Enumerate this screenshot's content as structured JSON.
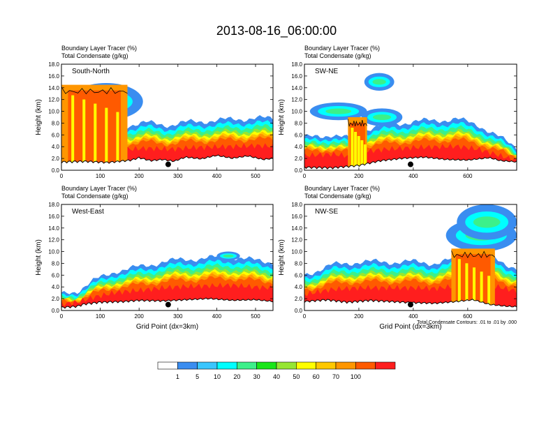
{
  "title": "2013-08-16_06:00:00",
  "colors": {
    "palette": [
      "#ffffff",
      "#3a8df0",
      "#39c6ff",
      "#00ffff",
      "#3cf08a",
      "#19e619",
      "#96e632",
      "#ffff00",
      "#ffc800",
      "#ff9600",
      "#ff5a00",
      "#ff1e1e"
    ],
    "terrain": "#000000"
  },
  "chart_data": {
    "type": "heatmap",
    "panel_labels": [
      "Boundary Layer Tracer   (%)",
      "Total Condensate   (g/kg)"
    ],
    "ylabel": "Height (km)",
    "ylim": [
      0,
      18
    ],
    "y_ticks": [
      "0.0",
      "2.0",
      "4.0",
      "6.0",
      "8.0",
      "10.0",
      "12.0",
      "14.0",
      "16.0",
      "18.0"
    ],
    "xlabel": "Grid Point (dx=3km)",
    "footnote": "Total Condensate Contours: .01 to .01 by .000",
    "colorbar": {
      "levels": [
        1,
        5,
        10,
        20,
        30,
        40,
        50,
        60,
        70,
        100
      ],
      "units": "%"
    },
    "panels": [
      {
        "name": "South-North",
        "xlim": [
          0,
          545
        ],
        "x_ticks": [
          0,
          100,
          200,
          300,
          400,
          500
        ],
        "marker_x": 275,
        "marker_y": 1.0,
        "terrain": [
          [
            0,
            1.2
          ],
          [
            60,
            1.3
          ],
          [
            120,
            1.1
          ],
          [
            180,
            1.5
          ],
          [
            200,
            1.9
          ],
          [
            230,
            1.4
          ],
          [
            260,
            1.6
          ],
          [
            290,
            1.3
          ],
          [
            320,
            2.0
          ],
          [
            360,
            1.7
          ],
          [
            400,
            2.3
          ],
          [
            440,
            1.8
          ],
          [
            480,
            2.2
          ],
          [
            520,
            1.6
          ],
          [
            545,
            1.8
          ]
        ],
        "pbl_top": [
          [
            0,
            6.5
          ],
          [
            100,
            6.6
          ],
          [
            160,
            6.4
          ],
          [
            220,
            6.8
          ],
          [
            280,
            6.5
          ],
          [
            340,
            7.0
          ],
          [
            400,
            7.2
          ],
          [
            460,
            7.4
          ],
          [
            500,
            7.6
          ],
          [
            545,
            7.4
          ]
        ],
        "storm": {
          "x0": 0,
          "x1": 170,
          "top": 14.5
        },
        "anvil": [
          {
            "x0": 20,
            "x1": 210,
            "base": 8.5,
            "top": 14.8
          }
        ]
      },
      {
        "name": "SW-NE",
        "xlim": [
          0,
          780
        ],
        "x_ticks": [
          0,
          200,
          400,
          600
        ],
        "marker_x": 390,
        "marker_y": 1.0,
        "terrain": [
          [
            0,
            0.3
          ],
          [
            100,
            0.2
          ],
          [
            200,
            0.6
          ],
          [
            280,
            1.4
          ],
          [
            360,
            1.8
          ],
          [
            440,
            2.0
          ],
          [
            520,
            1.6
          ],
          [
            600,
            1.5
          ],
          [
            680,
            1.9
          ],
          [
            720,
            1.4
          ],
          [
            780,
            1.2
          ]
        ],
        "pbl_top": [
          [
            0,
            4.5
          ],
          [
            100,
            5.0
          ],
          [
            180,
            4.2
          ],
          [
            220,
            5.8
          ],
          [
            300,
            6.5
          ],
          [
            400,
            7.0
          ],
          [
            480,
            7.2
          ],
          [
            560,
            7.4
          ],
          [
            640,
            6.5
          ],
          [
            700,
            5.0
          ],
          [
            780,
            3.0
          ]
        ],
        "storm": {
          "x0": 160,
          "x1": 230,
          "top": 9.0
        },
        "anvil": [
          {
            "x0": 20,
            "x1": 230,
            "base": 8.5,
            "top": 11.5
          },
          {
            "x0": 210,
            "x1": 360,
            "base": 7.5,
            "top": 10.5
          },
          {
            "x0": 220,
            "x1": 330,
            "base": 13.5,
            "top": 16.5
          }
        ]
      },
      {
        "name": "West-East",
        "xlim": [
          0,
          545
        ],
        "x_ticks": [
          0,
          100,
          200,
          300,
          400,
          500
        ],
        "marker_x": 275,
        "marker_y": 1.0,
        "terrain": [
          [
            0,
            0.3
          ],
          [
            40,
            0.5
          ],
          [
            60,
            0.9
          ],
          [
            100,
            1.2
          ],
          [
            160,
            1.3
          ],
          [
            200,
            1.5
          ],
          [
            260,
            1.4
          ],
          [
            320,
            1.6
          ],
          [
            380,
            1.8
          ],
          [
            440,
            1.5
          ],
          [
            500,
            1.6
          ],
          [
            545,
            1.3
          ]
        ],
        "pbl_top": [
          [
            0,
            2.0
          ],
          [
            40,
            2.5
          ],
          [
            80,
            4.0
          ],
          [
            140,
            5.6
          ],
          [
            200,
            6.2
          ],
          [
            260,
            7.0
          ],
          [
            320,
            7.4
          ],
          [
            380,
            7.6
          ],
          [
            440,
            7.8
          ],
          [
            500,
            7.2
          ],
          [
            545,
            7.0
          ]
        ],
        "storm": null,
        "anvil": [
          {
            "x0": 400,
            "x1": 460,
            "base": 8.5,
            "top": 10.0
          }
        ]
      },
      {
        "name": "NW-SE",
        "xlim": [
          0,
          780
        ],
        "x_ticks": [
          0,
          200,
          400,
          600
        ],
        "marker_x": 390,
        "marker_y": 1.0,
        "terrain": [
          [
            0,
            1.3
          ],
          [
            80,
            1.6
          ],
          [
            160,
            1.2
          ],
          [
            240,
            1.5
          ],
          [
            320,
            1.3
          ],
          [
            400,
            1.1
          ],
          [
            480,
            1.0
          ],
          [
            560,
            1.3
          ],
          [
            620,
            1.6
          ],
          [
            680,
            0.8
          ],
          [
            740,
            0.5
          ],
          [
            780,
            0.4
          ]
        ],
        "pbl_top": [
          [
            0,
            5.0
          ],
          [
            100,
            6.5
          ],
          [
            200,
            7.0
          ],
          [
            300,
            7.0
          ],
          [
            400,
            7.0
          ],
          [
            480,
            6.8
          ],
          [
            560,
            7.5
          ],
          [
            620,
            8.0
          ],
          [
            700,
            7.5
          ],
          [
            780,
            6.0
          ]
        ],
        "storm": {
          "x0": 540,
          "x1": 700,
          "top": 10.5
        },
        "anvil": [
          {
            "x0": 520,
            "x1": 780,
            "base": 10.0,
            "top": 15.5
          },
          {
            "x0": 560,
            "x1": 780,
            "base": 12.0,
            "top": 18.0
          }
        ]
      }
    ]
  }
}
